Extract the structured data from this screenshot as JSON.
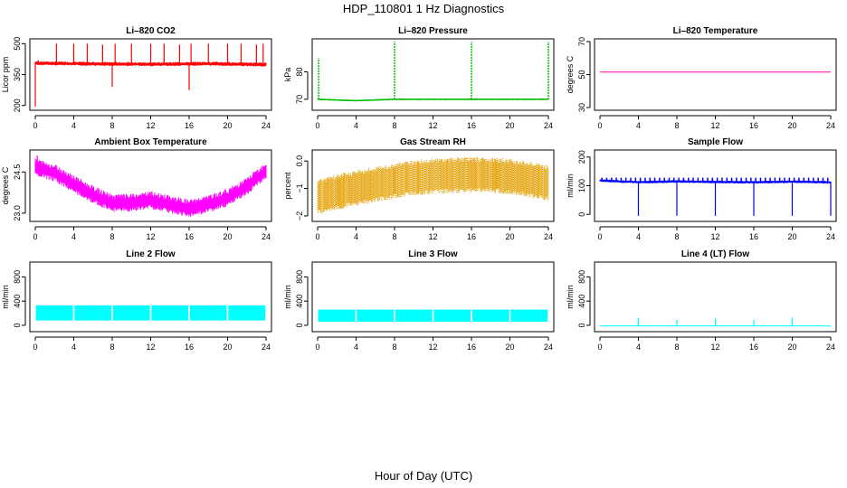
{
  "suptitle": "HDP_110801  1 Hz Diagnostics",
  "xlabel_bottom": "Hour of Day (UTC)",
  "chart_data": [
    {
      "type": "line",
      "title": "Li–820 CO2",
      "ylabel": "Licor ppm",
      "xlim": [
        0,
        24
      ],
      "ylim": [
        190,
        510
      ],
      "xticks": [
        0,
        4,
        8,
        12,
        16,
        20,
        24
      ],
      "xtick_labels": [
        "0",
        "4",
        "8",
        "12",
        "16",
        "20",
        "24"
      ],
      "yticks": [
        200,
        350,
        500
      ],
      "ytick_labels": [
        "200",
        "350",
        "500"
      ],
      "color": "#ff0000",
      "baseline": [
        [
          0,
          405
        ],
        [
          6,
          402
        ],
        [
          12,
          400
        ],
        [
          18,
          403
        ],
        [
          24,
          398
        ]
      ],
      "band": [
        -10,
        10
      ],
      "spikes": [
        [
          0,
          195
        ],
        [
          0.3,
          420
        ],
        [
          2.2,
          500
        ],
        [
          4,
          500
        ],
        [
          5.4,
          500
        ],
        [
          7,
          495
        ],
        [
          8,
          290
        ],
        [
          8.3,
          500
        ],
        [
          10,
          500
        ],
        [
          12,
          500
        ],
        [
          13.4,
          500
        ],
        [
          15,
          495
        ],
        [
          16,
          275
        ],
        [
          16.2,
          500
        ],
        [
          18,
          500
        ],
        [
          20,
          500
        ],
        [
          21.4,
          500
        ],
        [
          23,
          495
        ],
        [
          23.7,
          500
        ]
      ]
    },
    {
      "type": "line",
      "title": "Li–820 Pressure",
      "ylabel": "kPa",
      "xlim": [
        0,
        24
      ],
      "ylim": [
        67,
        91
      ],
      "xticks": [
        0,
        4,
        8,
        12,
        16,
        20,
        24
      ],
      "xtick_labels": [
        "0",
        "4",
        "8",
        "12",
        "16",
        "20",
        "24"
      ],
      "yticks": [
        70,
        80
      ],
      "ytick_labels": [
        "70",
        "80"
      ],
      "color": "#00c000",
      "baseline": [
        [
          0,
          70
        ],
        [
          4,
          69.5
        ],
        [
          8,
          70
        ],
        [
          16,
          70
        ],
        [
          24,
          70
        ]
      ],
      "band": [
        -0.3,
        0.3
      ],
      "spikes": [
        [
          0.1,
          85
        ],
        [
          8,
          91
        ],
        [
          16,
          91
        ],
        [
          24,
          91
        ]
      ]
    },
    {
      "type": "line",
      "title": "Li–820 Temperature",
      "ylabel": "degrees C",
      "xlim": [
        0,
        24
      ],
      "ylim": [
        30,
        70
      ],
      "xticks": [
        0,
        4,
        8,
        12,
        16,
        20,
        24
      ],
      "xtick_labels": [
        "0",
        "4",
        "8",
        "12",
        "16",
        "20",
        "24"
      ],
      "yticks": [
        30,
        50,
        70
      ],
      "ytick_labels": [
        "30",
        "50",
        "70"
      ],
      "color": "#ff00aa",
      "baseline": [
        [
          0,
          51.5
        ],
        [
          24,
          51.5
        ]
      ],
      "band": [
        0,
        0
      ],
      "spikes": []
    },
    {
      "type": "line",
      "title": "Ambient Box Temperature",
      "ylabel": "degrees C",
      "xlim": [
        0,
        24
      ],
      "ylim": [
        22.8,
        25.2
      ],
      "xticks": [
        0,
        4,
        8,
        12,
        16,
        20,
        24
      ],
      "xtick_labels": [
        "0",
        "4",
        "8",
        "12",
        "16",
        "20",
        "24"
      ],
      "yticks": [
        23.0,
        24.5
      ],
      "ytick_labels": [
        "23.0",
        "24.5"
      ],
      "color": "#ff00ff",
      "baseline": [
        [
          0,
          24.65
        ],
        [
          2,
          24.45
        ],
        [
          4,
          24.05
        ],
        [
          6,
          23.65
        ],
        [
          8,
          23.35
        ],
        [
          10,
          23.35
        ],
        [
          12,
          23.45
        ],
        [
          14,
          23.3
        ],
        [
          16,
          23.15
        ],
        [
          18,
          23.3
        ],
        [
          20,
          23.55
        ],
        [
          22,
          23.95
        ],
        [
          24,
          24.55
        ]
      ],
      "band": [
        -0.3,
        0.35
      ],
      "spikes": [
        [
          0.2,
          25.1
        ]
      ]
    },
    {
      "type": "scatter",
      "title": "Gas Stream RH",
      "ylabel": "percent",
      "xlim": [
        0,
        24
      ],
      "ylim": [
        -2.1,
        0.3
      ],
      "xticks": [
        0,
        4,
        8,
        12,
        16,
        20,
        24
      ],
      "xtick_labels": [
        "0",
        "4",
        "8",
        "12",
        "16",
        "20",
        "24"
      ],
      "yticks": [
        -2,
        -1,
        0
      ],
      "ytick_labels": [
        "−2",
        "−1",
        "0.0"
      ],
      "color": "#ff8c00",
      "color2": "#c8b400",
      "baseline": [
        [
          0,
          -1.3
        ],
        [
          3,
          -1.05
        ],
        [
          6,
          -0.85
        ],
        [
          9,
          -0.65
        ],
        [
          12,
          -0.55
        ],
        [
          15,
          -0.5
        ],
        [
          18,
          -0.5
        ],
        [
          21,
          -0.6
        ],
        [
          24,
          -0.8
        ]
      ],
      "band": [
        -0.65,
        0.65
      ],
      "spikes": []
    },
    {
      "type": "line",
      "title": "Sample Flow",
      "ylabel": "ml/min",
      "xlim": [
        0,
        24
      ],
      "ylim": [
        -15,
        215
      ],
      "xticks": [
        0,
        4,
        8,
        12,
        16,
        20,
        24
      ],
      "xtick_labels": [
        "0",
        "4",
        "8",
        "12",
        "16",
        "20",
        "24"
      ],
      "yticks": [
        0,
        100,
        200
      ],
      "ytick_labels": [
        "0",
        "100",
        "200"
      ],
      "color": "#0000ff",
      "baseline": [
        [
          0,
          118
        ],
        [
          4,
          112
        ],
        [
          8,
          115
        ],
        [
          12,
          113
        ],
        [
          16,
          112
        ],
        [
          20,
          114
        ],
        [
          24,
          112
        ]
      ],
      "band": [
        -5,
        5
      ],
      "spikes": [
        [
          4,
          -5
        ],
        [
          8,
          -5
        ],
        [
          12,
          -5
        ],
        [
          16,
          -5
        ],
        [
          20,
          -5
        ],
        [
          24,
          -5
        ]
      ],
      "bumps_every": 0.5,
      "bump_to": 128
    },
    {
      "type": "line",
      "title": "Line 2 Flow",
      "ylabel": "ml/min",
      "xlim": [
        0,
        24
      ],
      "ylim": [
        -60,
        1000
      ],
      "xticks": [
        0,
        4,
        8,
        12,
        16,
        20,
        24
      ],
      "xtick_labels": [
        "0",
        "4",
        "8",
        "12",
        "16",
        "20",
        "24"
      ],
      "yticks": [
        0,
        400,
        800
      ],
      "ytick_labels": [
        "0",
        "400",
        "800"
      ],
      "color": "#00ffff",
      "fill_between": [
        80,
        330
      ],
      "gaps": [
        4,
        8,
        12,
        16,
        20
      ],
      "spikes": []
    },
    {
      "type": "line",
      "title": "Line 3 Flow",
      "ylabel": "ml/min",
      "xlim": [
        0,
        24
      ],
      "ylim": [
        -60,
        1000
      ],
      "xticks": [
        0,
        4,
        8,
        12,
        16,
        20,
        24
      ],
      "xtick_labels": [
        "0",
        "4",
        "8",
        "12",
        "16",
        "20",
        "24"
      ],
      "yticks": [
        0,
        400,
        800
      ],
      "ytick_labels": [
        "0",
        "400",
        "800"
      ],
      "color": "#00ffff",
      "fill_between": [
        60,
        260
      ],
      "gaps": [
        4,
        8,
        12,
        16,
        20
      ],
      "spikes": []
    },
    {
      "type": "line",
      "title": "Line 4 (LT) Flow",
      "ylabel": "ml/min",
      "xlim": [
        0,
        24
      ],
      "ylim": [
        -60,
        1000
      ],
      "xticks": [
        0,
        4,
        8,
        12,
        16,
        20,
        24
      ],
      "xtick_labels": [
        "0",
        "4",
        "8",
        "12",
        "16",
        "20",
        "24"
      ],
      "yticks": [
        0,
        400,
        800
      ],
      "ytick_labels": [
        "0",
        "400",
        "800"
      ],
      "color": "#00ffff",
      "baseline": [
        [
          0,
          -10
        ],
        [
          24,
          -10
        ]
      ],
      "band": [
        0,
        0
      ],
      "spikes": [
        [
          4,
          120
        ],
        [
          8,
          90
        ],
        [
          12,
          110
        ],
        [
          16,
          90
        ],
        [
          20,
          130
        ]
      ]
    }
  ]
}
